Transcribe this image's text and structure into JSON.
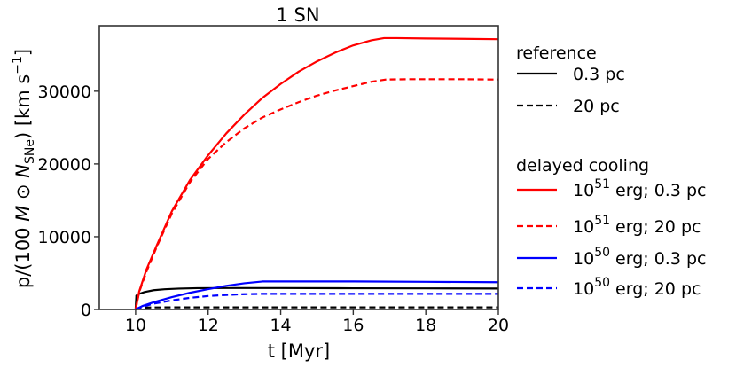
{
  "chart_data": {
    "type": "line",
    "title": "1 SN",
    "xlabel": "t [Myr]",
    "ylabel": "p/(100 M⊙ N_SNe) [km s⁻¹]",
    "ylabel_parts": {
      "a": "p/(100 ",
      "M": "M",
      "sun": " ⊙ ",
      "N": "N",
      "sub": "SNe",
      "b": ") [km s",
      "sup": "−1",
      "c": "]"
    },
    "xlim": [
      9,
      20
    ],
    "ylim": [
      0,
      39000
    ],
    "xticks": [
      10,
      12,
      14,
      16,
      18,
      20
    ],
    "yticks": [
      0,
      10000,
      20000,
      30000
    ],
    "grid": false,
    "legend_position": "right-outside",
    "legend_groups": [
      {
        "heading": "reference",
        "entries": [
          {
            "series": 0,
            "label": "0.3 pc"
          },
          {
            "series": 1,
            "label": "20 pc"
          }
        ]
      },
      {
        "heading": "delayed cooling",
        "entries": [
          {
            "series": 2,
            "base": "10",
            "exp": "51",
            "label": " erg; 0.3 pc"
          },
          {
            "series": 3,
            "base": "10",
            "exp": "51",
            "label": " erg; 20 pc"
          },
          {
            "series": 4,
            "base": "10",
            "exp": "50",
            "label": " erg; 0.3 pc"
          },
          {
            "series": 5,
            "base": "10",
            "exp": "50",
            "label": " erg; 20 pc"
          }
        ]
      }
    ],
    "series": [
      {
        "name": "reference 0.3 pc",
        "color": "#000000",
        "dash": "solid",
        "x": [
          10.0,
          10.02,
          10.02,
          10.1,
          10.25,
          10.5,
          10.8,
          11.2,
          11.7,
          12.5,
          14,
          16,
          18,
          20
        ],
        "y": [
          0,
          1800,
          1900,
          2150,
          2400,
          2650,
          2780,
          2870,
          2930,
          2950,
          2950,
          2920,
          2900,
          2880
        ]
      },
      {
        "name": "reference 20 pc",
        "color": "#000000",
        "dash": "dashed",
        "x": [
          10.0,
          10.1,
          10.5,
          11,
          12,
          14,
          16,
          18,
          20
        ],
        "y": [
          0,
          250,
          280,
          290,
          290,
          290,
          290,
          290,
          290
        ]
      },
      {
        "name": "10^51 erg; 0.3 pc",
        "color": "#ff0000",
        "dash": "solid",
        "x": [
          10.0,
          10.1,
          10.3,
          10.6,
          11,
          11.5,
          12,
          12.5,
          13,
          13.5,
          14,
          14.5,
          15,
          15.5,
          16,
          16.5,
          16.85,
          17.2,
          18,
          19,
          20
        ],
        "y": [
          0,
          2500,
          5500,
          9000,
          13500,
          17800,
          21200,
          24200,
          26800,
          29100,
          31000,
          32700,
          34100,
          35300,
          36300,
          37000,
          37300,
          37300,
          37250,
          37200,
          37150
        ]
      },
      {
        "name": "10^51 erg; 20 pc",
        "color": "#ff0000",
        "dash": "dashed",
        "x": [
          10.0,
          10.1,
          10.3,
          10.6,
          11,
          11.5,
          12,
          12.5,
          13,
          13.5,
          14,
          14.5,
          15,
          15.5,
          16,
          16.5,
          16.9,
          17.5,
          18,
          19,
          20
        ],
        "y": [
          0,
          2400,
          5200,
          8800,
          13200,
          17500,
          20700,
          23000,
          24900,
          26400,
          27500,
          28500,
          29400,
          30100,
          30700,
          31300,
          31600,
          31650,
          31650,
          31650,
          31600
        ]
      },
      {
        "name": "10^50 erg; 0.3 pc",
        "color": "#0000ff",
        "dash": "solid",
        "x": [
          10.0,
          10.2,
          10.5,
          11,
          11.5,
          12,
          12.5,
          13,
          13.5,
          14,
          16,
          18,
          20
        ],
        "y": [
          0,
          500,
          1000,
          1700,
          2300,
          2800,
          3250,
          3600,
          3850,
          3850,
          3850,
          3800,
          3750
        ]
      },
      {
        "name": "10^50 erg; 20 pc",
        "color": "#0000ff",
        "dash": "dashed",
        "x": [
          10.0,
          10.2,
          10.5,
          11,
          11.5,
          12,
          12.5,
          13,
          13.5,
          14,
          16,
          18,
          20
        ],
        "y": [
          0,
          400,
          800,
          1250,
          1600,
          1850,
          2000,
          2100,
          2150,
          2150,
          2150,
          2150,
          2150
        ]
      }
    ]
  }
}
